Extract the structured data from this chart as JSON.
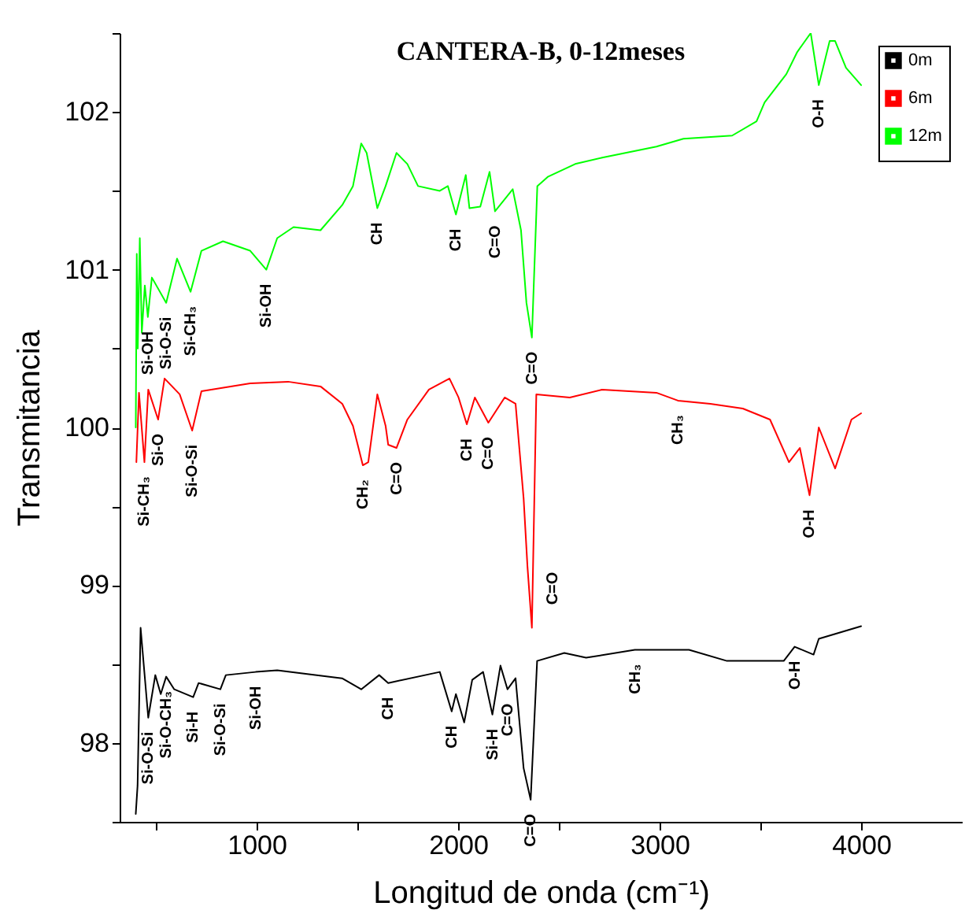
{
  "chart_data": {
    "type": "line",
    "title": "CANTERA-B, 0-12meses",
    "xlabel": "Longitud de onda (cm⁻¹)",
    "ylabel": "Transmitancia",
    "xlim": [
      320,
      4500
    ],
    "ylim": [
      97.5,
      102.5
    ],
    "xticks": [
      {
        "value": 500,
        "label": null
      },
      1000,
      {
        "value": 1500,
        "label": null
      },
      2000,
      {
        "value": 2500,
        "label": null
      },
      3000,
      {
        "value": 3500,
        "label": null
      },
      4000
    ],
    "yticks": [
      {
        "value": 97.5,
        "label": null
      },
      98,
      {
        "value": 98.5,
        "label": null
      },
      99,
      {
        "value": 99.5,
        "label": null
      },
      100,
      {
        "value": 100.5,
        "label": null
      },
      101,
      {
        "value": 101.5,
        "label": null
      },
      102,
      {
        "value": 102.5,
        "label": null
      }
    ],
    "grid": false,
    "legend": "top right",
    "marker": "none",
    "line_style": "solid",
    "series": [
      {
        "name": "0m",
        "color": "#000000",
        "x": [
          400,
          409,
          424,
          462,
          497,
          524,
          551,
          591,
          685,
          712,
          820,
          847,
          995,
          1102,
          1424,
          1519,
          1608,
          1653,
          1909,
          1968,
          1989,
          2030,
          2070,
          2124,
          2170,
          2210,
          2245,
          2285,
          2325,
          2360,
          2392,
          2527,
          2635,
          2877,
          3146,
          3334,
          3616,
          3670,
          3764,
          3790,
          4000
        ],
        "values": [
          97.55,
          97.73,
          98.73,
          98.16,
          98.43,
          98.31,
          98.42,
          98.34,
          98.29,
          98.38,
          98.34,
          98.43,
          98.45,
          98.46,
          98.41,
          98.34,
          98.43,
          98.38,
          98.45,
          98.2,
          98.31,
          98.13,
          98.4,
          98.45,
          98.18,
          98.49,
          98.34,
          98.41,
          97.84,
          97.64,
          98.52,
          98.57,
          98.54,
          98.59,
          98.59,
          98.52,
          98.52,
          98.61,
          98.56,
          98.66,
          98.74
        ]
      },
      {
        "name": "6m",
        "color": "#ff0000",
        "x": [
          403,
          416,
          443,
          462,
          511,
          543,
          618,
          680,
          726,
          968,
          1156,
          1317,
          1425,
          1478,
          1527,
          1554,
          1599,
          1640,
          1653,
          1694,
          1748,
          1855,
          1957,
          2002,
          2043,
          2083,
          2150,
          2231,
          2285,
          2325,
          2344,
          2366,
          2388,
          2554,
          2715,
          2984,
          3091,
          3252,
          3413,
          3548,
          3642,
          3696,
          3744,
          3790,
          3871,
          3952,
          4000
        ],
        "values": [
          99.78,
          100.22,
          99.78,
          100.24,
          100.05,
          100.31,
          100.21,
          99.98,
          100.23,
          100.28,
          100.29,
          100.26,
          100.15,
          100.01,
          99.76,
          99.78,
          100.21,
          100.01,
          99.89,
          99.87,
          100.05,
          100.24,
          100.31,
          100.19,
          100.02,
          100.19,
          100.03,
          100.19,
          100.15,
          99.55,
          99.12,
          98.73,
          100.21,
          100.19,
          100.24,
          100.22,
          100.17,
          100.15,
          100.12,
          100.05,
          99.78,
          99.87,
          99.57,
          100.0,
          99.74,
          100.05,
          100.09
        ]
      },
      {
        "name": "12m",
        "color": "#00ff00",
        "x": [
          400,
          405,
          410,
          420,
          430,
          445,
          460,
          480,
          551,
          605,
          672,
          726,
          833,
          968,
          1048,
          1102,
          1183,
          1317,
          1425,
          1478,
          1519,
          1546,
          1599,
          1640,
          1694,
          1748,
          1801,
          1909,
          1949,
          1989,
          2038,
          2056,
          2110,
          2156,
          2183,
          2271,
          2312,
          2339,
          2366,
          2393,
          2447,
          2581,
          2715,
          2984,
          3118,
          3360,
          3481,
          3521,
          3629,
          3683,
          3750,
          3790,
          3844,
          3871,
          3925,
          4000
        ],
        "values": [
          100.0,
          101.1,
          100.5,
          101.2,
          100.6,
          100.9,
          100.7,
          100.95,
          100.79,
          101.07,
          100.86,
          101.12,
          101.18,
          101.12,
          101.0,
          101.2,
          101.27,
          101.25,
          101.41,
          101.53,
          101.8,
          101.74,
          101.39,
          101.53,
          101.74,
          101.67,
          101.53,
          101.5,
          101.53,
          101.35,
          101.6,
          101.39,
          101.4,
          101.62,
          101.37,
          101.51,
          101.25,
          100.79,
          100.57,
          101.53,
          101.59,
          101.67,
          101.71,
          101.78,
          101.83,
          101.85,
          101.94,
          102.06,
          102.24,
          102.38,
          102.5,
          102.17,
          102.45,
          102.45,
          102.28,
          102.17
        ]
      }
    ],
    "annotations": [
      {
        "text": "Si-OH",
        "x": 460,
        "y": 100.7
      },
      {
        "text": "Si-O-Si",
        "x": 551,
        "y": 100.79
      },
      {
        "text": "Si-CH₃",
        "x": 672,
        "y": 100.86
      },
      {
        "text": "Si-OH",
        "x": 1048,
        "y": 101.0
      },
      {
        "text": "CH",
        "x": 1599,
        "y": 101.39
      },
      {
        "text": "CH",
        "x": 1989,
        "y": 101.35
      },
      {
        "text": "C=O",
        "x": 2183,
        "y": 101.37
      },
      {
        "text": "C=O",
        "x": 2366,
        "y": 100.57
      },
      {
        "text": "O-H",
        "x": 3790,
        "y": 102.17
      },
      {
        "text": "Si-CH₃",
        "x": 443,
        "y": 99.78
      },
      {
        "text": "Si-O",
        "x": 511,
        "y": 100.05
      },
      {
        "text": "Si-O-Si",
        "x": 680,
        "y": 99.98
      },
      {
        "text": "CH₂",
        "x": 1527,
        "y": 99.76
      },
      {
        "text": "C=O",
        "x": 1694,
        "y": 99.87
      },
      {
        "text": "CH",
        "x": 2043,
        "y": 100.02
      },
      {
        "text": "C=O",
        "x": 2150,
        "y": 100.03
      },
      {
        "text": "C=O",
        "x": 2366,
        "y": 98.73
      },
      {
        "text": "CH₃",
        "x": 3091,
        "y": 100.17
      },
      {
        "text": "O-H",
        "x": 3744,
        "y": 99.57
      },
      {
        "text": "Si-O-Si",
        "x": 462,
        "y": 98.16
      },
      {
        "text": "Si-O-CH₃",
        "x": 551,
        "y": 98.42
      },
      {
        "text": "Si-H",
        "x": 685,
        "y": 98.29
      },
      {
        "text": "Si-O-Si",
        "x": 820,
        "y": 98.34
      },
      {
        "text": "Si-OH",
        "x": 995,
        "y": 98.45
      },
      {
        "text": "CH",
        "x": 1653,
        "y": 98.38
      },
      {
        "text": "CH",
        "x": 1968,
        "y": 98.2
      },
      {
        "text": "Si-H",
        "x": 2170,
        "y": 98.18
      },
      {
        "text": "C=O",
        "x": 2245,
        "y": 98.34
      },
      {
        "text": "C=O",
        "x": 2360,
        "y": 97.64
      },
      {
        "text": "CH₃",
        "x": 2877,
        "y": 98.59
      },
      {
        "text": "O-H",
        "x": 3670,
        "y": 98.61
      }
    ]
  }
}
